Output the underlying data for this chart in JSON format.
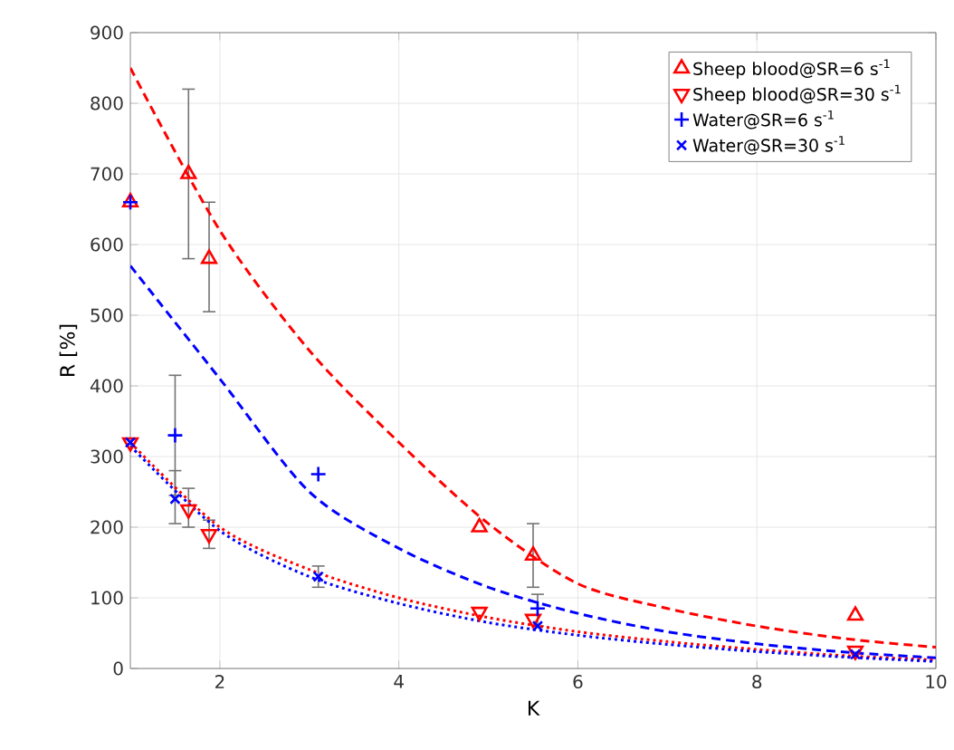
{
  "chart_data": {
    "type": "scatter",
    "xlabel": "K",
    "ylabel": "R [%]",
    "xlim": [
      1,
      10
    ],
    "ylim": [
      0,
      900
    ],
    "xticks": [
      2,
      4,
      6,
      8,
      10
    ],
    "yticks": [
      0,
      100,
      200,
      300,
      400,
      500,
      600,
      700,
      800,
      900
    ],
    "grid": true,
    "legend": "top right",
    "series": [
      {
        "name": "Sheep blood@SR=6 s$^{-1}$",
        "color": "#ff0000",
        "marker": "triangle",
        "x": [
          1,
          1.65,
          1.88,
          4.9,
          5.5,
          9.1
        ],
        "values": [
          660,
          700,
          580,
          200,
          160,
          75
        ],
        "errors": [
          null,
          [
            580,
            820
          ],
          [
            505,
            660
          ],
          null,
          [
            115,
            205
          ],
          null
        ]
      },
      {
        "name": "Sheep blood@SR=30 s$^{-1}$",
        "color": "#ff0000",
        "marker": "triangle-down",
        "x": [
          1,
          1.65,
          1.88,
          4.9,
          5.5,
          9.1
        ],
        "values": [
          320,
          225,
          190,
          80,
          70,
          25
        ],
        "errors": [
          null,
          [
            200,
            255
          ],
          [
            170,
            210
          ],
          null,
          null,
          null
        ]
      },
      {
        "name": "Water@SR=6 s$^{-1}$",
        "color": "#0000ff",
        "marker": "plus",
        "x": [
          1,
          1.5,
          3.1,
          5.55
        ],
        "values": [
          660,
          330,
          275,
          85
        ],
        "errors": [
          null,
          [
            245,
            415
          ],
          null,
          [
            60,
            105
          ]
        ]
      },
      {
        "name": "Water@SR=30 s$^{-1}$",
        "color": "#0000ff",
        "marker": "cross",
        "x": [
          1,
          1.5,
          3.1,
          5.55,
          9.1
        ],
        "values": [
          320,
          240,
          130,
          60,
          20
        ],
        "errors": [
          null,
          [
            205,
            280
          ],
          [
            115,
            145
          ],
          null,
          null
        ]
      },
      {
        "type": "line",
        "color": "#ff0000",
        "line_style": "dashed",
        "x": [
          1,
          2,
          3,
          4,
          5,
          6,
          7,
          8,
          9,
          10
        ],
        "values": [
          850,
          620,
          450,
          320,
          205,
          120,
          85,
          60,
          42,
          30
        ]
      },
      {
        "type": "line",
        "color": "#0000ff",
        "line_style": "dashed",
        "x": [
          1,
          2,
          3,
          4,
          5,
          6,
          7,
          8,
          9,
          10
        ],
        "values": [
          570,
          410,
          250,
          170,
          115,
          78,
          52,
          35,
          23,
          15
        ]
      },
      {
        "type": "line",
        "color": "#ff0000",
        "line_style": "dotted",
        "x": [
          1,
          2,
          3,
          4,
          5,
          6,
          7,
          8,
          9,
          10
        ],
        "values": [
          320,
          200,
          140,
          100,
          72,
          52,
          38,
          27,
          18,
          12
        ]
      },
      {
        "type": "line",
        "color": "#0000ff",
        "line_style": "dotted",
        "x": [
          1,
          2,
          3,
          4,
          5,
          6,
          7,
          8,
          9,
          10
        ],
        "values": [
          315,
          195,
          130,
          92,
          65,
          47,
          34,
          24,
          16,
          10
        ]
      }
    ]
  }
}
